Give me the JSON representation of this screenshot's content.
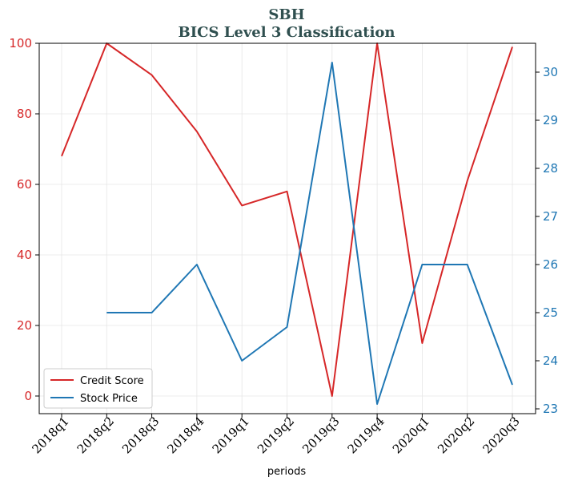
{
  "chart_data": {
    "type": "line",
    "title": "SBH",
    "subtitle": "BICS Level 3 Classification",
    "xlabel": "periods",
    "categories": [
      "2018q1",
      "2018q2",
      "2018q3",
      "2018q4",
      "2019q1",
      "2019q2",
      "2019q3",
      "2019q4",
      "2020q1",
      "2020q2",
      "2020q3"
    ],
    "series": [
      {
        "name": "Credit Score",
        "axis": "left",
        "color": "#d62728",
        "values": [
          68,
          100,
          91,
          75,
          54,
          58,
          0,
          100,
          15,
          61,
          99
        ]
      },
      {
        "name": "Stock Price",
        "axis": "right",
        "color": "#1f77b4",
        "values": [
          null,
          25.0,
          25.0,
          26.0,
          24.0,
          24.7,
          30.2,
          23.1,
          26.0,
          26.0,
          23.5
        ]
      }
    ],
    "y_left": {
      "ylim": [
        -5,
        100
      ],
      "ticks": [
        0,
        20,
        40,
        60,
        80,
        100
      ],
      "color": "#d62728"
    },
    "y_right": {
      "ylim": [
        22.9,
        30.6
      ],
      "ticks": [
        23,
        24,
        25,
        26,
        27,
        28,
        29,
        30
      ],
      "color": "#1f77b4"
    },
    "grid": true,
    "legend_position": "bottom-left"
  }
}
